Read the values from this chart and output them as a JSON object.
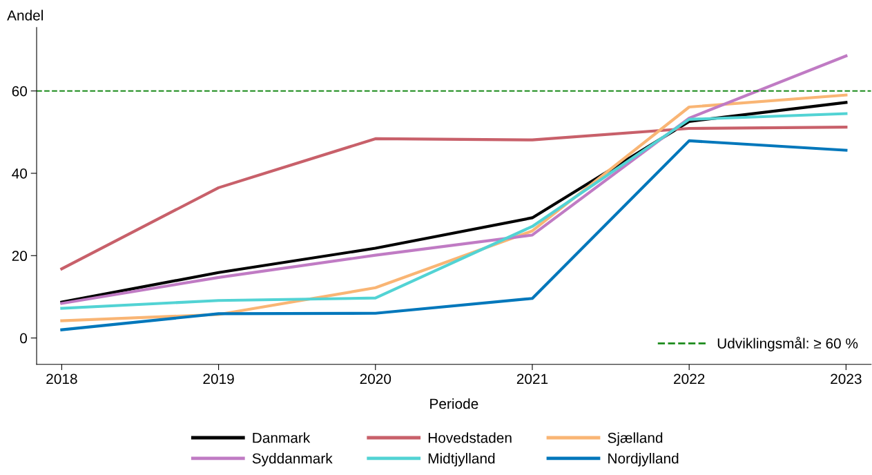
{
  "chart_data": {
    "type": "line",
    "xlabel": "Periode",
    "ylabel": "Andel",
    "x": [
      2018,
      2019,
      2020,
      2021,
      2022,
      2023
    ],
    "xlim": [
      2017.84,
      2023.16
    ],
    "xticks": [
      2018,
      2019,
      2020,
      2021,
      2022,
      2023
    ],
    "ylim": [
      -6.4,
      75.4
    ],
    "yticks": [
      0,
      20,
      40,
      60
    ],
    "grid": false,
    "legend": "bottom",
    "marker": "none",
    "line_style": "solid",
    "ref_lines": [
      {
        "axis": "y",
        "value": 60,
        "label": "Udviklingsmål: ≥ 60 %",
        "color": "#1a8a1a",
        "line_style": "dashed"
      }
    ],
    "series": [
      {
        "name": "Danmark",
        "color": "#000000",
        "values": [
          8.7,
          15.9,
          21.8,
          29.2,
          52.6,
          57.2
        ]
      },
      {
        "name": "Hovedstaden",
        "color": "#c8606a",
        "values": [
          16.8,
          36.5,
          48.4,
          48.1,
          50.9,
          51.2
        ]
      },
      {
        "name": "Sjælland",
        "color": "#f9b574",
        "values": [
          4.2,
          5.7,
          12.2,
          26.0,
          56.1,
          59.0
        ]
      },
      {
        "name": "Syddanmark",
        "color": "#c07bc4",
        "values": [
          8.4,
          14.7,
          20.1,
          25.0,
          53.4,
          68.5
        ]
      },
      {
        "name": "Midtjylland",
        "color": "#52d3d4",
        "values": [
          7.2,
          9.1,
          9.7,
          27.1,
          53.1,
          54.5
        ]
      },
      {
        "name": "Nordjylland",
        "color": "#0077bb",
        "values": [
          2.0,
          5.9,
          6.0,
          9.6,
          47.9,
          45.6
        ]
      }
    ]
  }
}
